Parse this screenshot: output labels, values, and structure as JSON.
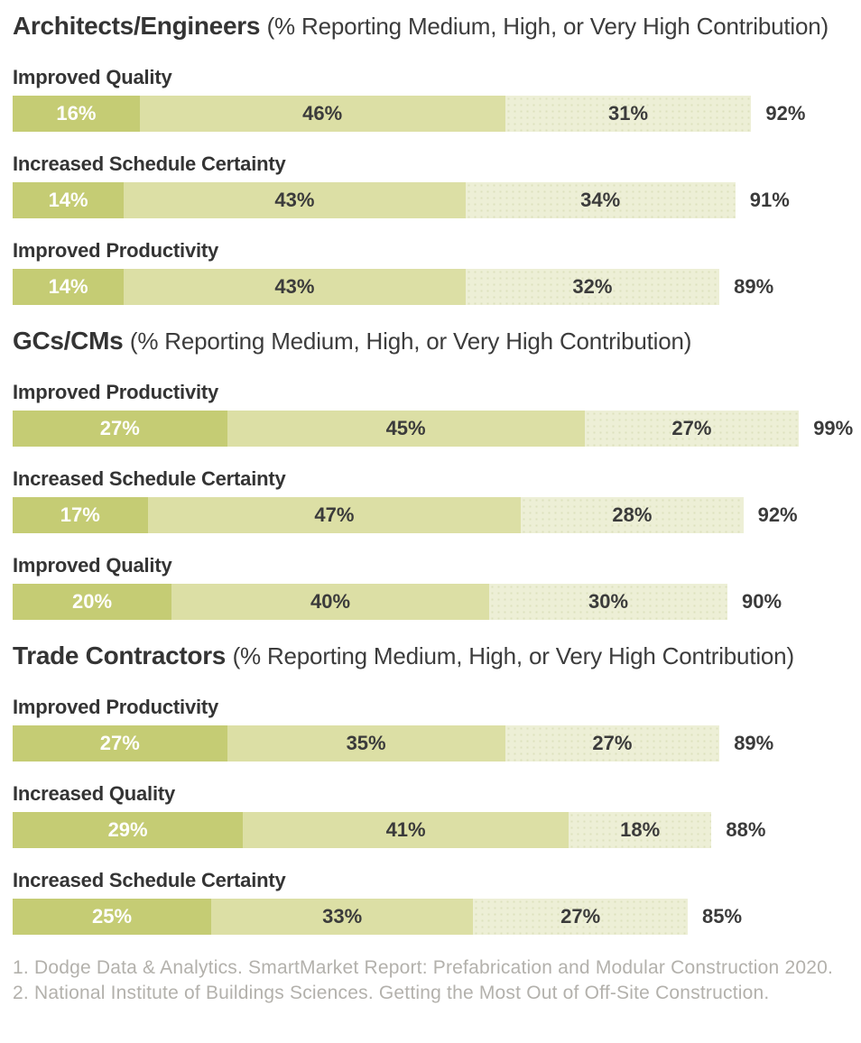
{
  "colors": {
    "segment_1": "#c5cc74",
    "segment_2": "#dcdfa5",
    "segment_3": "#edefd6",
    "segment_3_dots": "#dde1bd",
    "heading_text": "#343434",
    "value_text_dark": "#3b3b3b",
    "value_text_light": "#ffffff",
    "footnote_text": "#b3b1ac",
    "background": "#ffffff"
  },
  "chart_data": [
    {
      "type": "bar",
      "orientation": "horizontal-stacked",
      "title": "Architects/Engineers",
      "subtitle": "(% Reporting Medium, High, or Very High Contribution)",
      "unit": "%",
      "xlim": [
        0,
        100
      ],
      "grid": false,
      "legend": "none",
      "rows": [
        {
          "label": "Improved Quality",
          "values": [
            16,
            46,
            31
          ],
          "labels": [
            "16%",
            "46%",
            "31%"
          ],
          "total": 92,
          "total_label": "92%"
        },
        {
          "label": "Increased Schedule Certainty",
          "values": [
            14,
            43,
            34
          ],
          "labels": [
            "14%",
            "43%",
            "34%"
          ],
          "total": 91,
          "total_label": "91%"
        },
        {
          "label": "Improved Productivity",
          "values": [
            14,
            43,
            32
          ],
          "labels": [
            "14%",
            "43%",
            "32%"
          ],
          "total": 89,
          "total_label": "89%"
        }
      ]
    },
    {
      "type": "bar",
      "orientation": "horizontal-stacked",
      "title": "GCs/CMs",
      "subtitle": "(% Reporting Medium, High, or Very High Contribution)",
      "unit": "%",
      "xlim": [
        0,
        100
      ],
      "grid": false,
      "legend": "none",
      "rows": [
        {
          "label": "Improved Productivity",
          "values": [
            27,
            45,
            27
          ],
          "labels": [
            "27%",
            "45%",
            "27%"
          ],
          "total": 99,
          "total_label": "99%"
        },
        {
          "label": "Increased Schedule Certainty",
          "values": [
            17,
            47,
            28
          ],
          "labels": [
            "17%",
            "47%",
            "28%"
          ],
          "total": 92,
          "total_label": "92%"
        },
        {
          "label": "Improved Quality",
          "values": [
            20,
            40,
            30
          ],
          "labels": [
            "20%",
            "40%",
            "30%"
          ],
          "total": 90,
          "total_label": "90%"
        }
      ]
    },
    {
      "type": "bar",
      "orientation": "horizontal-stacked",
      "title": "Trade Contractors",
      "subtitle": "(% Reporting Medium, High, or Very High Contribution)",
      "unit": "%",
      "xlim": [
        0,
        100
      ],
      "grid": false,
      "legend": "none",
      "rows": [
        {
          "label": "Improved Productivity",
          "values": [
            27,
            35,
            27
          ],
          "labels": [
            "27%",
            "35%",
            "27%"
          ],
          "total": 89,
          "total_label": "89%"
        },
        {
          "label": "Increased Quality",
          "values": [
            29,
            41,
            18
          ],
          "labels": [
            "29%",
            "41%",
            "18%"
          ],
          "total": 88,
          "total_label": "88%"
        },
        {
          "label": "Increased Schedule Certainty",
          "values": [
            25,
            33,
            27
          ],
          "labels": [
            "25%",
            "33%",
            "27%"
          ],
          "total": 85,
          "total_label": "85%"
        }
      ]
    }
  ],
  "footnotes": [
    "1. Dodge Data & Analytics. SmartMarket Report: Prefabrication and Modular Construction 2020.",
    "2. National Institute of Buildings Sciences. Getting the Most Out of Off-Site Construction."
  ]
}
